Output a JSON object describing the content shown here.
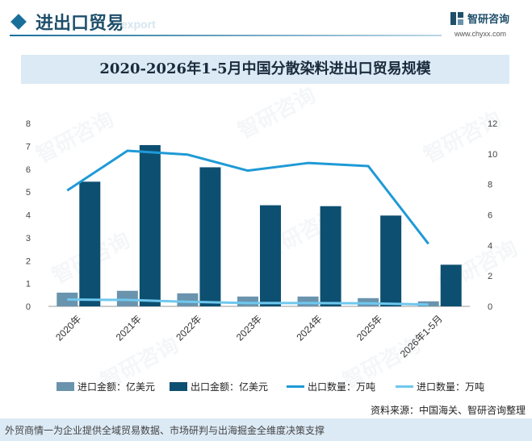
{
  "header": {
    "title": "进出口贸易",
    "subtitle": "export",
    "brand_name": "智研咨询",
    "brand_url": "www.chyxx.com"
  },
  "watermark_text": "智研咨询",
  "colors": {
    "import_amount": "#6a93ad",
    "export_amount": "#0d4f71",
    "export_qty": "#1f9ad6",
    "import_qty": "#6fc8ee"
  },
  "chart_data": {
    "type": "bar",
    "title": "2020-2026年1-5月中国分散染料进出口贸易规模",
    "categories": [
      "2020年",
      "2021年",
      "2022年",
      "2023年",
      "2024年",
      "2025年",
      "2026年1-5月"
    ],
    "y_left": {
      "range": [
        0,
        8
      ],
      "ticks": [
        "0",
        "1",
        "2",
        "3",
        "4",
        "5",
        "6",
        "7",
        "8"
      ]
    },
    "y_right": {
      "range": [
        0,
        12
      ],
      "ticks": [
        "0",
        "2",
        "4",
        "6",
        "8",
        "10",
        "12"
      ]
    },
    "series": [
      {
        "name": "进口金额：亿美元",
        "type": "bar",
        "axis": "left",
        "values": [
          0.6,
          0.68,
          0.57,
          0.43,
          0.43,
          0.36,
          0.22
        ]
      },
      {
        "name": "出口金额：亿美元",
        "type": "bar",
        "axis": "left",
        "values": [
          5.45,
          7.05,
          6.08,
          4.42,
          4.38,
          3.97,
          1.82
        ]
      },
      {
        "name": "出口数量：万吨",
        "type": "line",
        "axis": "right",
        "values": [
          7.6,
          10.2,
          9.95,
          8.9,
          9.4,
          9.2,
          4.1
        ]
      },
      {
        "name": "进口数量：万吨",
        "type": "line",
        "axis": "right",
        "values": [
          0.45,
          0.42,
          0.3,
          0.22,
          0.22,
          0.2,
          0.12
        ]
      }
    ],
    "grid": false,
    "legend_position": "bottom"
  },
  "source_text": "资料来源：中国海关、智研咨询整理",
  "footer_text": "外贸商情一为企业提供全域贸易数据、市场研判与出海掘金全维度决策支撑"
}
